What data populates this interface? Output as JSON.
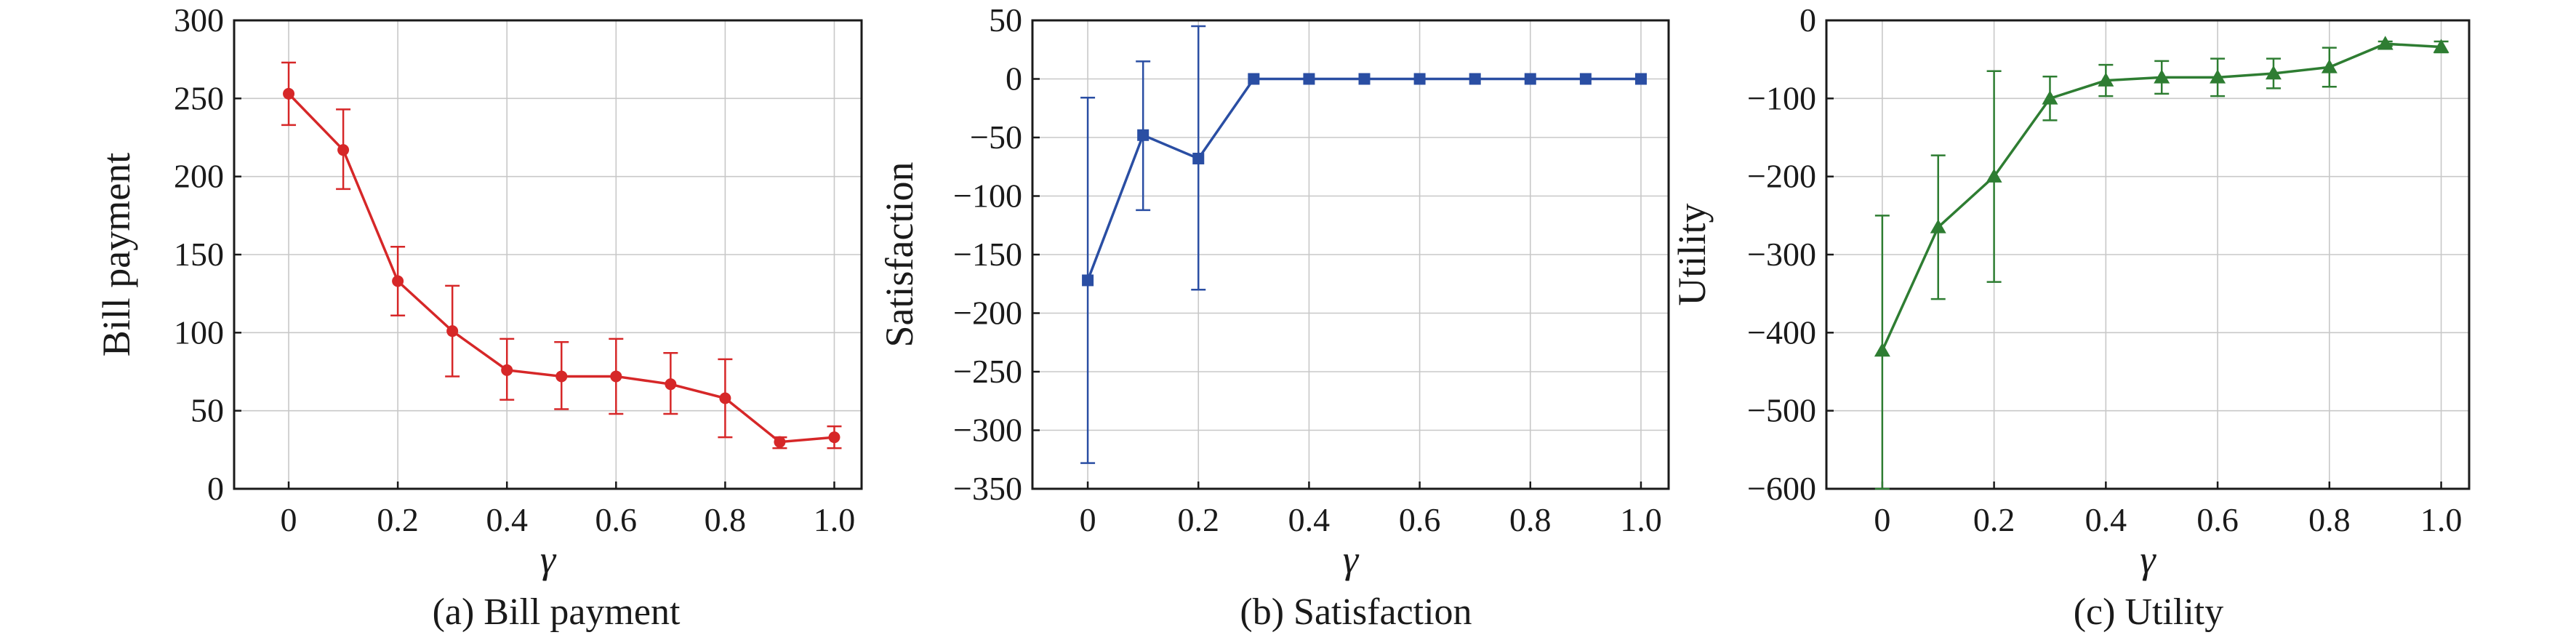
{
  "chart_data": [
    {
      "type": "line",
      "caption": "(a) Bill payment",
      "xlabel": "γ",
      "ylabel": "Bill payment",
      "xlim": [
        -0.1,
        1.05
      ],
      "ylim": [
        0,
        300
      ],
      "xticks": [
        0,
        0.2,
        0.4,
        0.6,
        0.8,
        1.0
      ],
      "xtick_labels": [
        "0",
        "0.2",
        "0.4",
        "0.6",
        "0.8",
        "1.0"
      ],
      "yticks": [
        0,
        50,
        100,
        150,
        200,
        250,
        300
      ],
      "ytick_labels": [
        "0",
        "50",
        "100",
        "150",
        "200",
        "250",
        "300"
      ],
      "grid": true,
      "color": "#d62728",
      "marker": "circle",
      "x": [
        0,
        0.1,
        0.2,
        0.3,
        0.4,
        0.5,
        0.6,
        0.7,
        0.8,
        0.9,
        1.0
      ],
      "y": [
        253,
        217,
        133,
        101,
        76,
        72,
        72,
        67,
        58,
        30,
        33
      ],
      "err_low": [
        233,
        192,
        111,
        72,
        57,
        51,
        48,
        48,
        33,
        26,
        26
      ],
      "err_high": [
        273,
        243,
        155,
        130,
        96,
        94,
        96,
        87,
        83,
        33,
        40
      ]
    },
    {
      "type": "line",
      "caption": "(b) Satisfaction",
      "xlabel": "γ",
      "ylabel": "Satisfaction",
      "xlim": [
        -0.1,
        1.05
      ],
      "ylim": [
        -350,
        50
      ],
      "xticks": [
        0,
        0.2,
        0.4,
        0.6,
        0.8,
        1.0
      ],
      "xtick_labels": [
        "0",
        "0.2",
        "0.4",
        "0.6",
        "0.8",
        "1.0"
      ],
      "yticks": [
        -350,
        -300,
        -250,
        -200,
        -150,
        -100,
        -50,
        0,
        50
      ],
      "ytick_labels": [
        "−350",
        "−300",
        "−250",
        "−200",
        "−150",
        "−100",
        "−50",
        "0",
        "50"
      ],
      "grid": true,
      "color": "#2a4ea3",
      "marker": "square",
      "x": [
        0,
        0.1,
        0.2,
        0.3,
        0.4,
        0.5,
        0.6,
        0.7,
        0.8,
        0.9,
        1.0
      ],
      "y": [
        -172,
        -48,
        -68,
        0,
        0,
        0,
        0,
        0,
        0,
        0,
        0
      ],
      "err_low": [
        -328,
        -112,
        -180,
        0,
        0,
        0,
        0,
        0,
        0,
        0,
        0
      ],
      "err_high": [
        -16,
        15,
        45,
        0,
        0,
        0,
        0,
        0,
        0,
        0,
        0
      ]
    },
    {
      "type": "line",
      "caption": "(c) Utility",
      "xlabel": "γ",
      "ylabel": "Utility",
      "xlim": [
        -0.1,
        1.05
      ],
      "ylim": [
        -600,
        0
      ],
      "xticks": [
        0,
        0.2,
        0.4,
        0.6,
        0.8,
        1.0
      ],
      "xtick_labels": [
        "0",
        "0.2",
        "0.4",
        "0.6",
        "0.8",
        "1.0"
      ],
      "yticks": [
        -600,
        -500,
        -400,
        -300,
        -200,
        -100,
        0
      ],
      "ytick_labels": [
        "−600",
        "−500",
        "−400",
        "−300",
        "−200",
        "−100",
        "0"
      ],
      "grid": true,
      "color": "#2e7d32",
      "marker": "triangle",
      "x": [
        0,
        0.1,
        0.2,
        0.3,
        0.4,
        0.5,
        0.6,
        0.7,
        0.8,
        0.9,
        1.0
      ],
      "y": [
        -423,
        -265,
        -200,
        -100,
        -77,
        -73,
        -73,
        -68,
        -60,
        -30,
        -34
      ],
      "err_low": [
        -600,
        -357,
        -335,
        -128,
        -97,
        -94,
        -97,
        -87,
        -85,
        -33,
        -41
      ],
      "err_high": [
        -250,
        -173,
        -65,
        -72,
        -57,
        -52,
        -49,
        -49,
        -35,
        -27,
        -27
      ]
    }
  ]
}
